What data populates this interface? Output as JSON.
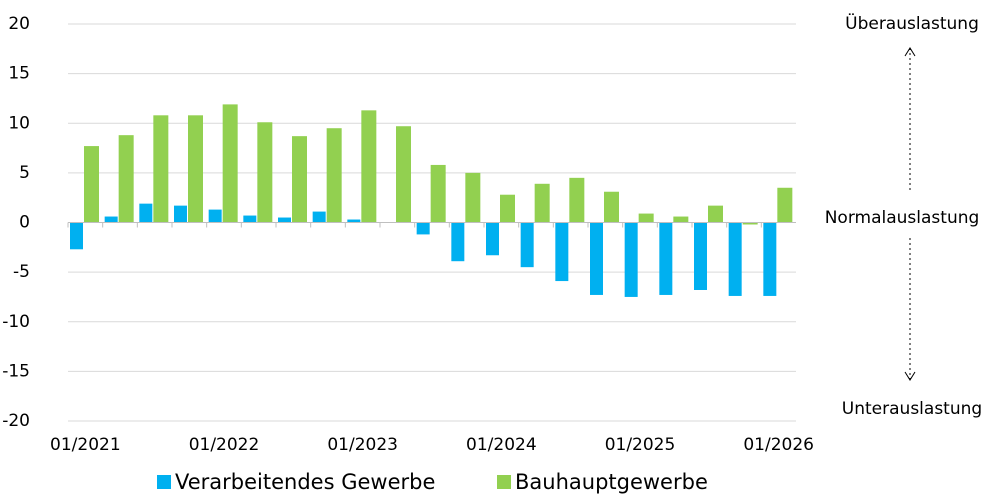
{
  "chart_data": {
    "type": "bar",
    "categories": [
      "01/2021",
      null,
      null,
      null,
      "01/2022",
      null,
      null,
      null,
      "01/2023",
      null,
      null,
      null,
      "01/2024",
      null,
      null,
      null,
      "01/2025",
      null,
      null,
      null,
      "01/2026"
    ],
    "series": [
      {
        "name": "Verarbeitendes Gewerbe",
        "color": "#00b0f0",
        "values": [
          -2.7,
          0.6,
          1.9,
          1.7,
          1.3,
          0.7,
          0.5,
          1.1,
          0.3,
          0,
          -1.2,
          -3.9,
          -3.3,
          -4.5,
          -5.9,
          -7.3,
          -7.5,
          -7.3,
          -6.8,
          -7.4,
          -7.4
        ]
      },
      {
        "name": "Bauhauptgewerbe",
        "color": "#92d050",
        "values": [
          7.7,
          8.8,
          10.8,
          10.8,
          11.9,
          10.1,
          8.7,
          9.5,
          11.3,
          9.7,
          5.8,
          5.0,
          2.8,
          3.9,
          4.5,
          3.1,
          0.9,
          0.6,
          1.7,
          -0.2,
          3.5
        ]
      }
    ],
    "ylim": [
      -20,
      20
    ],
    "yticks": [
      -20,
      -15,
      -10,
      -5,
      0,
      5,
      10,
      15,
      20
    ],
    "grid": true,
    "annotations": [
      "Überauslastung",
      "Normalauslastung",
      "Unterauslastung"
    ]
  }
}
